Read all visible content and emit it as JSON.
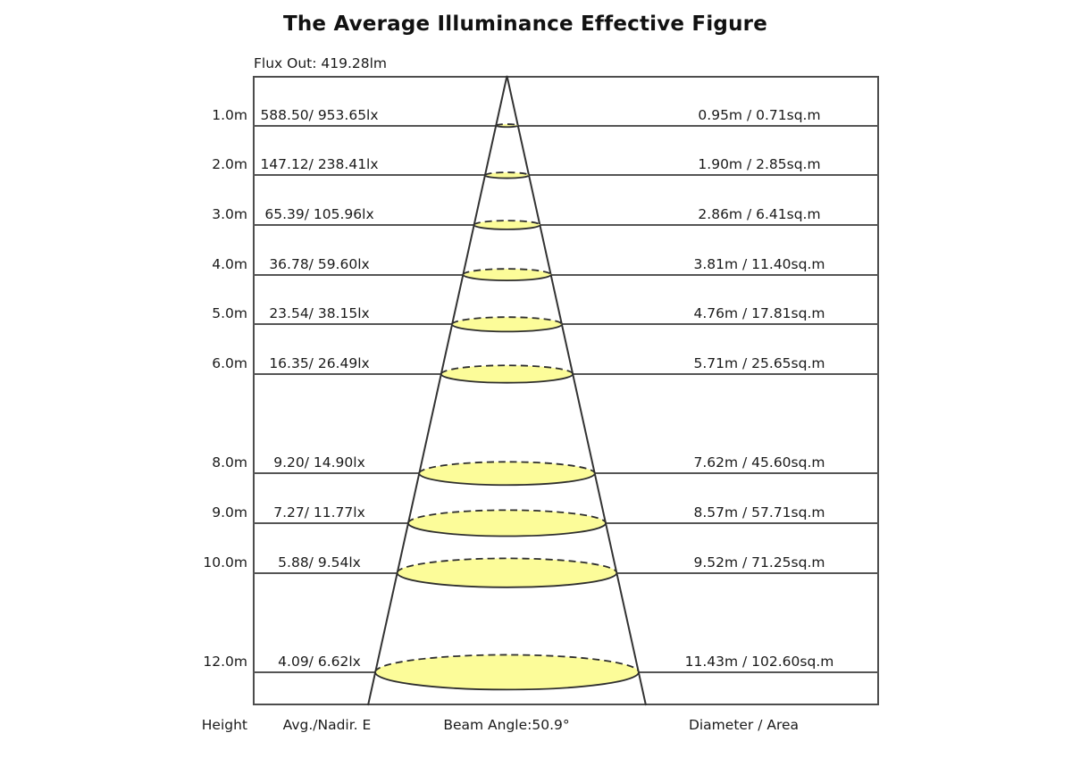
{
  "title": "The Average Illuminance Effective Figure",
  "flux_label": "Flux Out: 419.28lm",
  "footer": {
    "height_label": "Height",
    "avg_label": "Avg./Nadir. E",
    "beam_angle_label": "Beam Angle:50.9°",
    "diameter_label": "Diameter / Area"
  },
  "colors": {
    "ellipse_fill": "#FCFC99",
    "ellipse_stroke": "#2e2e2e",
    "cone_line": "#333333",
    "grid_line": "#555555",
    "text": "#1a1a1a"
  },
  "chart_data": {
    "type": "table",
    "title": "The Average Illuminance Effective Figure",
    "flux_out": "419.28lm",
    "flux_out_lm": 419.28,
    "beam_angle_deg": 50.9,
    "columns": [
      "Height",
      "Avg./Nadir. E",
      "Diameter / Area"
    ],
    "rows": [
      {
        "height_m": 1.0,
        "height_label": "1.0m",
        "avg_nadir": "588.50/ 953.65lx",
        "diameter_area": "0.95m / 0.71sq.m",
        "diameter_m": 0.95
      },
      {
        "height_m": 2.0,
        "height_label": "2.0m",
        "avg_nadir": "147.12/ 238.41lx",
        "diameter_area": "1.90m / 2.85sq.m",
        "diameter_m": 1.9
      },
      {
        "height_m": 3.0,
        "height_label": "3.0m",
        "avg_nadir": "65.39/ 105.96lx",
        "diameter_area": "2.86m / 6.41sq.m",
        "diameter_m": 2.86
      },
      {
        "height_m": 4.0,
        "height_label": "4.0m",
        "avg_nadir": "36.78/ 59.60lx",
        "diameter_area": "3.81m / 11.40sq.m",
        "diameter_m": 3.81
      },
      {
        "height_m": 5.0,
        "height_label": "5.0m",
        "avg_nadir": "23.54/ 38.15lx",
        "diameter_area": "4.76m / 17.81sq.m",
        "diameter_m": 4.76
      },
      {
        "height_m": 6.0,
        "height_label": "6.0m",
        "avg_nadir": "16.35/ 26.49lx",
        "diameter_area": "5.71m / 25.65sq.m",
        "diameter_m": 5.71
      },
      {
        "height_m": 8.0,
        "height_label": "8.0m",
        "avg_nadir": "9.20/ 14.90lx",
        "diameter_area": "7.62m / 45.60sq.m",
        "diameter_m": 7.62
      },
      {
        "height_m": 9.0,
        "height_label": "9.0m",
        "avg_nadir": "7.27/ 11.77lx",
        "diameter_area": "8.57m / 57.71sq.m",
        "diameter_m": 8.57
      },
      {
        "height_m": 10.0,
        "height_label": "10.0m",
        "avg_nadir": "5.88/ 9.54lx",
        "diameter_area": "9.52m / 71.25sq.m",
        "diameter_m": 9.52
      },
      {
        "height_m": 12.0,
        "height_label": "12.0m",
        "avg_nadir": "4.09/ 6.62lx",
        "diameter_area": "11.43m / 102.60sq.m",
        "diameter_m": 11.43
      }
    ]
  }
}
